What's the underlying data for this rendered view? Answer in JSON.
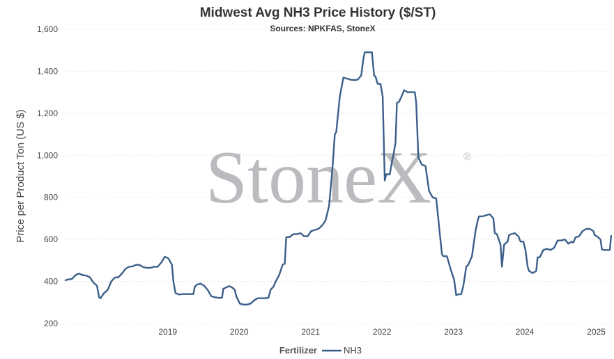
{
  "chart_data": {
    "type": "line",
    "title": "Midwest Avg NH3 Price History ($/ST)",
    "subtitle": "Sources: NPKFAS, StoneX",
    "ylabel": "Price per Product Ton (US $)",
    "xlabel": "",
    "ylim": [
      200,
      1600
    ],
    "yticks": [
      200,
      400,
      600,
      800,
      1000,
      1200,
      1400,
      1600
    ],
    "ytick_labels": [
      "200",
      "400",
      "600",
      "800",
      "1,000",
      "1,200",
      "1,400",
      "1,600"
    ],
    "xlim": [
      2018.0,
      2025.65
    ],
    "xticks": [
      2019,
      2020,
      2021,
      2022,
      2023,
      2024,
      2025
    ],
    "xtick_labels": [
      "2019",
      "2020",
      "2021",
      "2022",
      "2023",
      "2024",
      "2025"
    ],
    "grid": true,
    "legend": {
      "title": "Fertilizer",
      "position": "bottom-center"
    },
    "watermark": "StoneX",
    "watermark_mark": "®",
    "series": [
      {
        "name": "NH3",
        "color": "#3b5f8a",
        "points": [
          [
            2018.0,
            405
          ],
          [
            2018.05,
            410
          ],
          [
            2018.1,
            412
          ],
          [
            2018.15,
            430
          ],
          [
            2018.2,
            438
          ],
          [
            2018.25,
            430
          ],
          [
            2018.3,
            428
          ],
          [
            2018.35,
            420
          ],
          [
            2018.4,
            395
          ],
          [
            2018.45,
            380
          ],
          [
            2018.48,
            325
          ],
          [
            2018.5,
            320
          ],
          [
            2018.55,
            345
          ],
          [
            2018.6,
            360
          ],
          [
            2018.65,
            400
          ],
          [
            2018.7,
            418
          ],
          [
            2018.75,
            420
          ],
          [
            2018.8,
            438
          ],
          [
            2018.85,
            460
          ],
          [
            2018.9,
            470
          ],
          [
            2018.95,
            472
          ],
          [
            2019.0,
            480
          ],
          [
            2019.05,
            478
          ],
          [
            2019.1,
            468
          ],
          [
            2019.15,
            465
          ],
          [
            2019.2,
            465
          ],
          [
            2019.25,
            470
          ],
          [
            2019.3,
            470
          ],
          [
            2019.35,
            490
          ],
          [
            2019.4,
            518
          ],
          [
            2019.45,
            510
          ],
          [
            2019.5,
            480
          ],
          [
            2019.52,
            400
          ],
          [
            2019.55,
            345
          ],
          [
            2019.6,
            338
          ],
          [
            2019.65,
            340
          ],
          [
            2019.7,
            340
          ],
          [
            2019.75,
            340
          ],
          [
            2019.8,
            340
          ],
          [
            2019.82,
            375
          ],
          [
            2019.85,
            385
          ],
          [
            2019.9,
            390
          ],
          [
            2019.95,
            380
          ],
          [
            2020.0,
            360
          ],
          [
            2020.05,
            330
          ],
          [
            2020.1,
            325
          ],
          [
            2020.15,
            322
          ],
          [
            2020.2,
            322
          ],
          [
            2020.22,
            365
          ],
          [
            2020.25,
            370
          ],
          [
            2020.3,
            378
          ],
          [
            2020.35,
            370
          ],
          [
            2020.38,
            360
          ],
          [
            2020.4,
            330
          ],
          [
            2020.45,
            295
          ],
          [
            2020.5,
            290
          ],
          [
            2020.55,
            290
          ],
          [
            2020.6,
            295
          ],
          [
            2020.65,
            310
          ],
          [
            2020.7,
            320
          ],
          [
            2020.75,
            320
          ],
          [
            2020.8,
            320
          ],
          [
            2020.85,
            322
          ],
          [
            2020.88,
            360
          ],
          [
            2020.92,
            375
          ],
          [
            2020.95,
            398
          ],
          [
            2021.0,
            430
          ],
          [
            2021.05,
            480
          ],
          [
            2021.08,
            485
          ],
          [
            2021.1,
            610
          ],
          [
            2021.15,
            612
          ],
          [
            2021.2,
            625
          ],
          [
            2021.25,
            625
          ],
          [
            2021.3,
            630
          ],
          [
            2021.35,
            615
          ],
          [
            2021.4,
            615
          ],
          [
            2021.45,
            640
          ],
          [
            2021.5,
            645
          ],
          [
            2021.55,
            650
          ],
          [
            2021.6,
            665
          ],
          [
            2021.65,
            690
          ],
          [
            2021.7,
            760
          ],
          [
            2021.75,
            950
          ],
          [
            2021.78,
            1100
          ],
          [
            2021.8,
            1110
          ],
          [
            2021.85,
            1280
          ],
          [
            2021.9,
            1370
          ],
          [
            2021.95,
            1365
          ],
          [
            2022.0,
            1360
          ],
          [
            2022.05,
            1358
          ],
          [
            2022.1,
            1360
          ],
          [
            2022.15,
            1380
          ],
          [
            2022.18,
            1460
          ],
          [
            2022.2,
            1490
          ],
          [
            2022.25,
            1490
          ],
          [
            2022.3,
            1490
          ],
          [
            2022.33,
            1380
          ],
          [
            2022.35,
            1375
          ],
          [
            2022.38,
            1340
          ],
          [
            2022.42,
            1340
          ],
          [
            2022.45,
            1280
          ],
          [
            2022.48,
            880
          ],
          [
            2022.5,
            910
          ],
          [
            2022.55,
            910
          ],
          [
            2022.58,
            970
          ],
          [
            2022.6,
            1000
          ],
          [
            2022.63,
            1060
          ],
          [
            2022.65,
            1250
          ],
          [
            2022.68,
            1255
          ],
          [
            2022.72,
            1285
          ],
          [
            2022.75,
            1310
          ],
          [
            2022.8,
            1300
          ],
          [
            2022.85,
            1300
          ],
          [
            2022.9,
            1300
          ],
          [
            2022.92,
            1250
          ],
          [
            2022.95,
            990
          ],
          [
            2023.0,
            955
          ],
          [
            2023.05,
            950
          ],
          [
            2023.1,
            830
          ],
          [
            2023.15,
            800
          ],
          [
            2023.2,
            795
          ],
          [
            2023.25,
            630
          ],
          [
            2023.28,
            530
          ],
          [
            2023.3,
            520
          ],
          [
            2023.35,
            520
          ],
          [
            2023.4,
            460
          ],
          [
            2023.45,
            410
          ],
          [
            2023.48,
            335
          ],
          [
            2023.5,
            338
          ],
          [
            2023.55,
            340
          ],
          [
            2023.58,
            380
          ],
          [
            2023.62,
            470
          ],
          [
            2023.65,
            480
          ],
          [
            2023.7,
            520
          ],
          [
            2023.75,
            640
          ],
          [
            2023.78,
            690
          ],
          [
            2023.8,
            710
          ],
          [
            2023.85,
            710
          ],
          [
            2023.9,
            715
          ],
          [
            2023.95,
            720
          ],
          [
            2024.0,
            700
          ],
          [
            2024.02,
            630
          ],
          [
            2024.05,
            625
          ],
          [
            2024.1,
            575
          ],
          [
            2024.12,
            470
          ],
          [
            2024.15,
            575
          ],
          [
            2024.2,
            590
          ],
          [
            2024.22,
            620
          ],
          [
            2024.25,
            625
          ],
          [
            2024.3,
            630
          ],
          [
            2024.35,
            615
          ],
          [
            2024.38,
            590
          ],
          [
            2024.42,
            590
          ],
          [
            2024.45,
            550
          ],
          [
            2024.48,
            470
          ],
          [
            2024.5,
            450
          ],
          [
            2024.55,
            440
          ],
          [
            2024.6,
            450
          ],
          [
            2024.62,
            515
          ],
          [
            2024.65,
            515
          ],
          [
            2024.7,
            550
          ],
          [
            2024.75,
            555
          ],
          [
            2024.8,
            550
          ],
          [
            2024.85,
            560
          ],
          [
            2024.9,
            595
          ],
          [
            2024.95,
            595
          ],
          [
            2025.0,
            600
          ],
          [
            2025.05,
            580
          ],
          [
            2025.1,
            590
          ],
          [
            2025.12,
            585
          ],
          [
            2025.15,
            610
          ],
          [
            2025.2,
            615
          ],
          [
            2025.25,
            640
          ],
          [
            2025.3,
            650
          ],
          [
            2025.35,
            650
          ],
          [
            2025.4,
            640
          ],
          [
            2025.42,
            620
          ],
          [
            2025.45,
            615
          ],
          [
            2025.5,
            600
          ],
          [
            2025.52,
            552
          ],
          [
            2025.55,
            550
          ],
          [
            2025.6,
            550
          ],
          [
            2025.63,
            550
          ],
          [
            2025.65,
            620
          ]
        ]
      }
    ]
  }
}
